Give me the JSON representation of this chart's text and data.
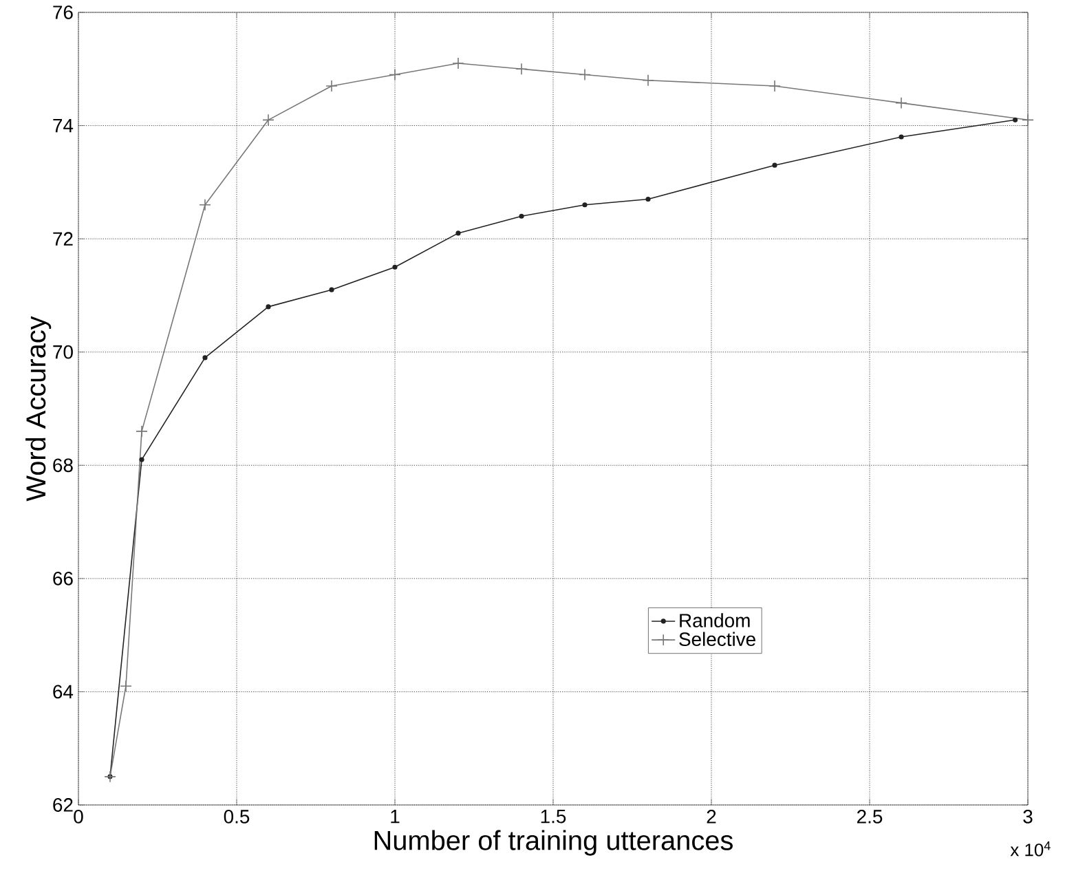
{
  "chart_data": {
    "type": "line",
    "xlabel": "Number of training utterances",
    "ylabel": "Word Accuracy",
    "annotations": [
      "x 10$^{4}$"
    ],
    "series": [
      {
        "name": "Random",
        "color": "#222222",
        "marker": "circle",
        "x": [
          0.1,
          0.2,
          0.4,
          0.6,
          0.8,
          1.0,
          1.2,
          1.4,
          1.6,
          1.8,
          2.2,
          2.6,
          2.96
        ],
        "values": [
          62.5,
          68.1,
          69.9,
          70.8,
          71.1,
          71.5,
          72.1,
          72.4,
          72.6,
          72.7,
          73.3,
          73.8,
          74.1
        ]
      },
      {
        "name": "Selective",
        "color": "#777777",
        "marker": "cross",
        "x": [
          0.1,
          0.15,
          0.2,
          0.4,
          0.6,
          0.8,
          1.0,
          1.2,
          1.4,
          1.6,
          1.8,
          2.2,
          2.6,
          3.0
        ],
        "values": [
          62.5,
          64.1,
          68.6,
          72.6,
          74.1,
          74.7,
          74.9,
          75.1,
          75.0,
          74.9,
          74.8,
          74.7,
          74.4,
          74.1
        ]
      }
    ],
    "xlim": [
      0,
      3
    ],
    "xticks": [
      0,
      0.5,
      1,
      1.5,
      2,
      2.5,
      3
    ],
    "ylim": [
      62,
      76
    ],
    "yticks": [
      62,
      64,
      66,
      68,
      70,
      72,
      74,
      76
    ],
    "grid": true,
    "legend": "bottom",
    "line_style": "solid"
  }
}
